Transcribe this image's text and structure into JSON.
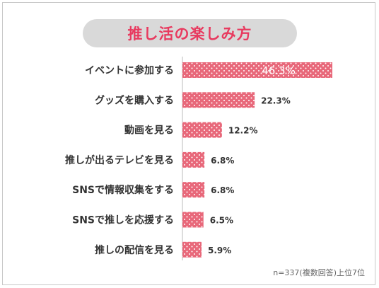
{
  "title": "推し活の楽しみ方",
  "footnote": "n=337(複数回答)上位7位",
  "colors": {
    "bar": "#e8687a",
    "dot": "#ffffff",
    "title": "#e83a5f",
    "pill": "#d9d9d9"
  },
  "chart_data": {
    "type": "bar",
    "orientation": "horizontal",
    "categories": [
      "イベントに参加する",
      "グッズを購入する",
      "動画を見る",
      "推しが出るテレビを見る",
      "SNSで情報収集をする",
      "SNSで推しを応援する",
      "推しの配信を見る"
    ],
    "values": [
      46.3,
      22.3,
      12.2,
      6.8,
      6.8,
      6.5,
      5.9
    ],
    "labels": [
      "46.3%",
      "22.3%",
      "12.2%",
      "6.8%",
      "6.8%",
      "6.5%",
      "5.9%"
    ],
    "title": "推し活の楽しみ方",
    "xlim": [
      0,
      46.3
    ]
  }
}
